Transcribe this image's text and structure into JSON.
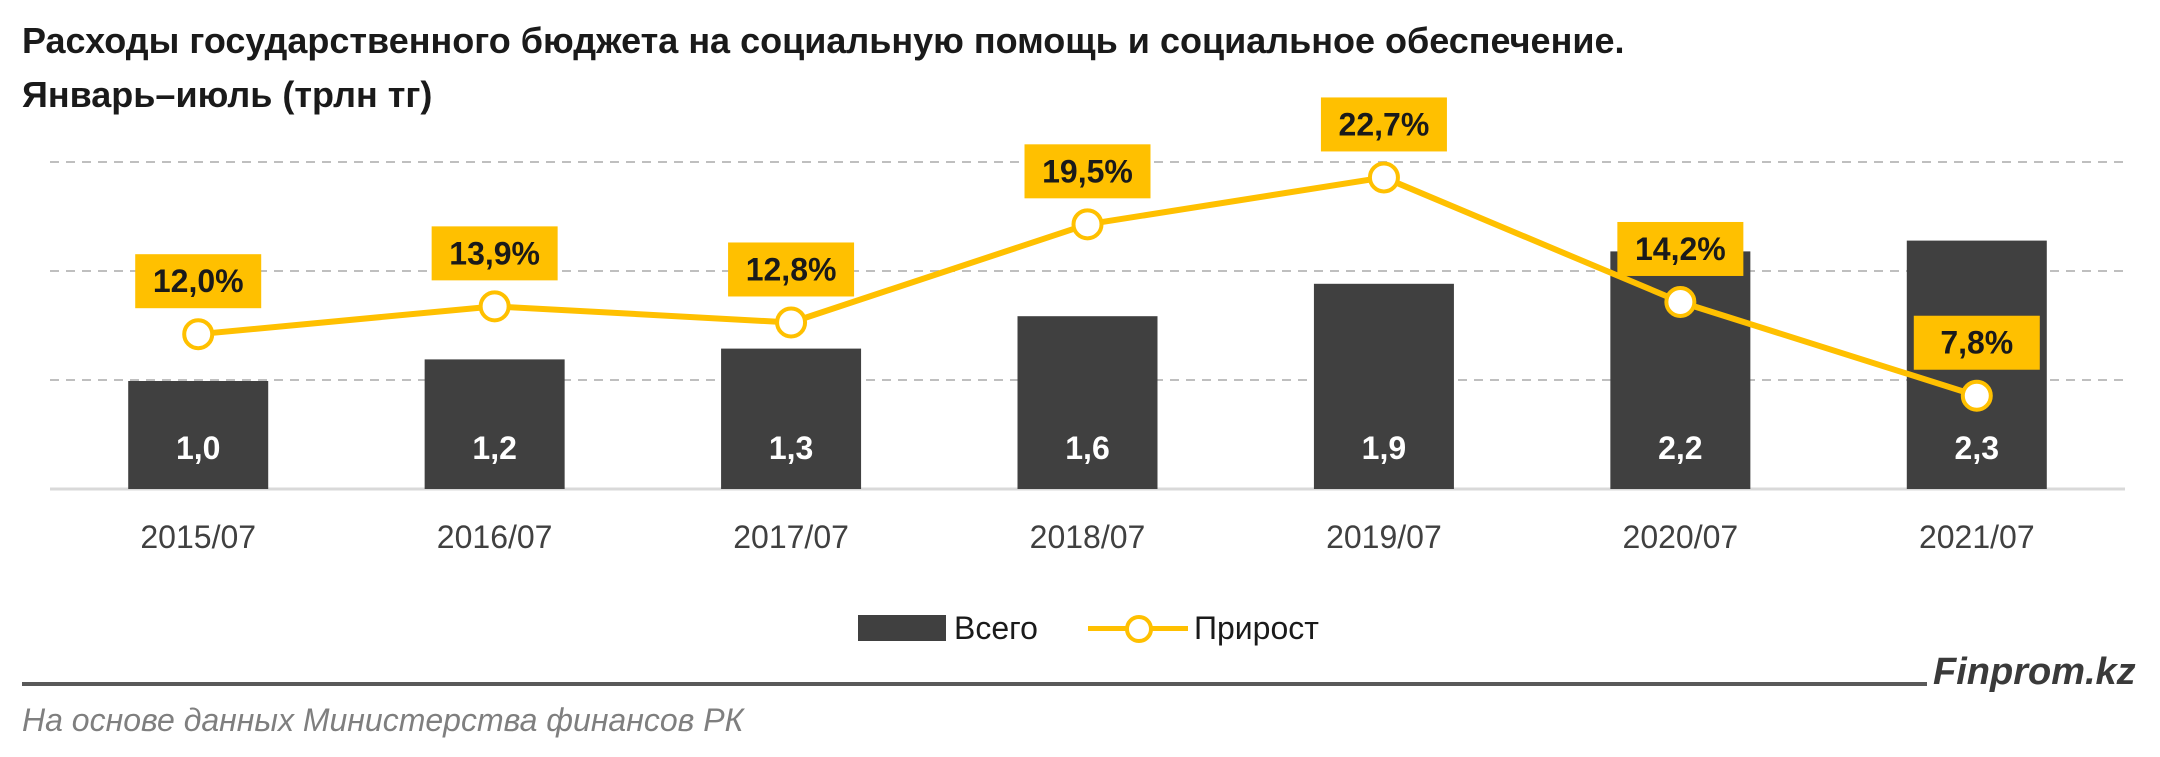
{
  "title_line1": "Расходы государственного бюджета на социальную помощь и социальное обеспечение.",
  "title_line2": "Январь–июль (трлн тг)",
  "brand": "Finprom.kz",
  "source": "На основе данных Министерства финансов РК",
  "colors": {
    "bar": "#404040",
    "line": "#FFC000",
    "label_box": "#FFC000",
    "grid": "#bfbfbf",
    "axis": "#d9d9d9"
  },
  "chart_data": {
    "type": "bar",
    "categories": [
      "2015/07",
      "2016/07",
      "2017/07",
      "2018/07",
      "2019/07",
      "2020/07",
      "2021/07"
    ],
    "series": [
      {
        "name": "Всего",
        "type": "bar",
        "values": [
          1.0,
          1.2,
          1.3,
          1.6,
          1.9,
          2.2,
          2.3
        ],
        "labels": [
          "1,0",
          "1,2",
          "1,3",
          "1,6",
          "1,9",
          "2,2",
          "2,3"
        ]
      },
      {
        "name": "Прирост",
        "type": "line",
        "values": [
          12.0,
          13.9,
          12.8,
          19.5,
          22.7,
          14.2,
          7.8
        ],
        "labels": [
          "12,0%",
          "13,9%",
          "12,8%",
          "19,5%",
          "22,7%",
          "14,2%",
          "7,8%"
        ]
      }
    ],
    "legend": [
      "Всего",
      "Прирост"
    ],
    "legend_position": "bottom",
    "grid": true
  }
}
